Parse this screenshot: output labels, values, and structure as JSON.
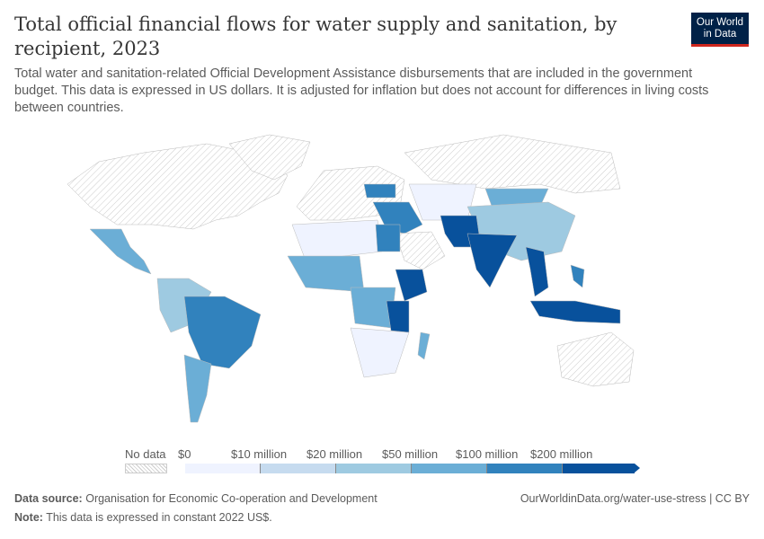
{
  "header": {
    "title": "Total official financial flows for water supply and sanitation, by recipient, 2023",
    "subtitle": "Total water and sanitation-related Official Development Assistance disbursements that are included in the government budget. This data is expressed in US dollars. It is adjusted for inflation but does not account for differences in living costs between countries.",
    "logo": "Our World in Data"
  },
  "map": {
    "no_data_color": "#e6e6e6",
    "colors": [
      "#eff3ff",
      "#c6dbef",
      "#9ecae1",
      "#6baed6",
      "#3182bd",
      "#08519c"
    ]
  },
  "legend": {
    "no_data_label": "No data",
    "bins": [
      "$0",
      "$10 million",
      "$20 million",
      "$50 million",
      "$100 million",
      "$200 million"
    ]
  },
  "footer": {
    "source_label": "Data source:",
    "source": "Organisation for Economic Co-operation and Development",
    "note_label": "Note:",
    "note": "This data is expressed in constant 2022 US$.",
    "url": "OurWorldinData.org/water-use-stress | CC BY"
  }
}
